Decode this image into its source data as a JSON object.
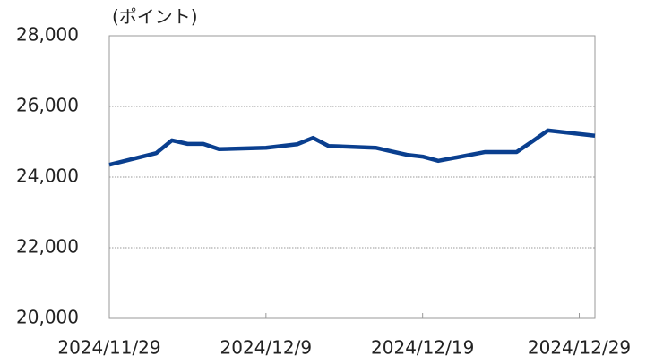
{
  "chart_data": {
    "type": "line",
    "y_label": "(ポイント)",
    "x": [
      "2024/11/29",
      "2024/12/2",
      "2024/12/3",
      "2024/12/4",
      "2024/12/5",
      "2024/12/6",
      "2024/12/9",
      "2024/12/10",
      "2024/12/11",
      "2024/12/12",
      "2024/12/13",
      "2024/12/16",
      "2024/12/17",
      "2024/12/18",
      "2024/12/19",
      "2024/12/20",
      "2024/12/23",
      "2024/12/24",
      "2024/12/25",
      "2024/12/26",
      "2024/12/27",
      "2024/12/30"
    ],
    "series": [
      {
        "color": "#0a3f8f",
        "values": [
          24350,
          24680,
          25040,
          24940,
          24940,
          24790,
          24830,
          24880,
          24930,
          25110,
          24880,
          24830,
          24730,
          24630,
          24580,
          24460,
          24710,
          24710,
          24710,
          25010,
          25320,
          25170
        ]
      }
    ],
    "xlim": [
      "2024/11/29",
      "2024/12/30"
    ],
    "xticks": [
      "2024/11/29",
      "2024/12/9",
      "2024/12/19",
      "2024/12/29"
    ],
    "ylim": [
      20000,
      28000
    ],
    "yticks": [
      {
        "value": 20000,
        "label": "20,000"
      },
      {
        "value": 22000,
        "label": "22,000"
      },
      {
        "value": 24000,
        "label": "24,000"
      },
      {
        "value": 26000,
        "label": "26,000"
      },
      {
        "value": 28000,
        "label": "28,000"
      }
    ],
    "grid": true
  }
}
